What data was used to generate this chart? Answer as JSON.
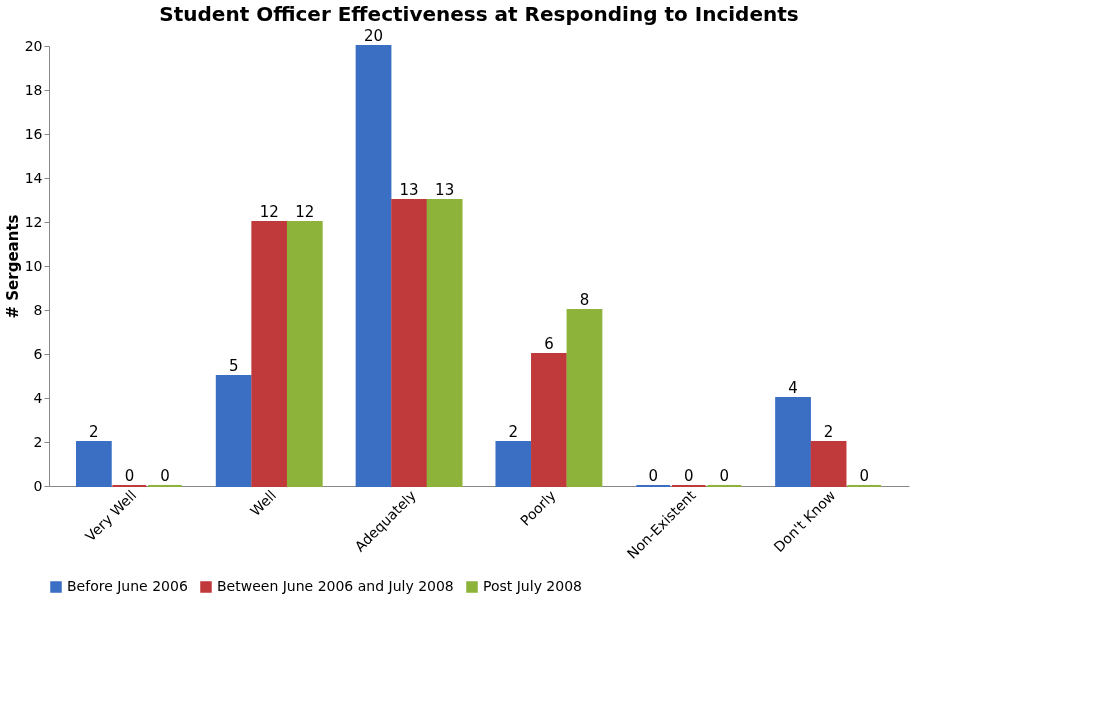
{
  "chart_data": {
    "type": "bar",
    "title": "Student Officer Effectiveness at Responding to Incidents",
    "ylabel": "# Sergeants",
    "categories": [
      "Very Well",
      "Well",
      "Adequately",
      "Poorly",
      "Non-Existent",
      "Don't Know"
    ],
    "series": [
      {
        "name": "Before June 2006",
        "color": "#3a6fc4",
        "values": [
          2,
          5,
          20,
          2,
          0,
          4
        ]
      },
      {
        "name": "Between June 2006 and July 2008",
        "color": "#c0393b",
        "values": [
          0,
          12,
          13,
          6,
          0,
          2
        ]
      },
      {
        "name": "Post July 2008",
        "color": "#8db33a",
        "values": [
          0,
          12,
          13,
          8,
          0,
          0
        ]
      }
    ],
    "ylim": [
      0,
      20
    ],
    "yticks": [
      0,
      2,
      4,
      6,
      8,
      10,
      12,
      14,
      16,
      18,
      20
    ],
    "grid": false,
    "legend": "bottom",
    "data_labels": true
  }
}
